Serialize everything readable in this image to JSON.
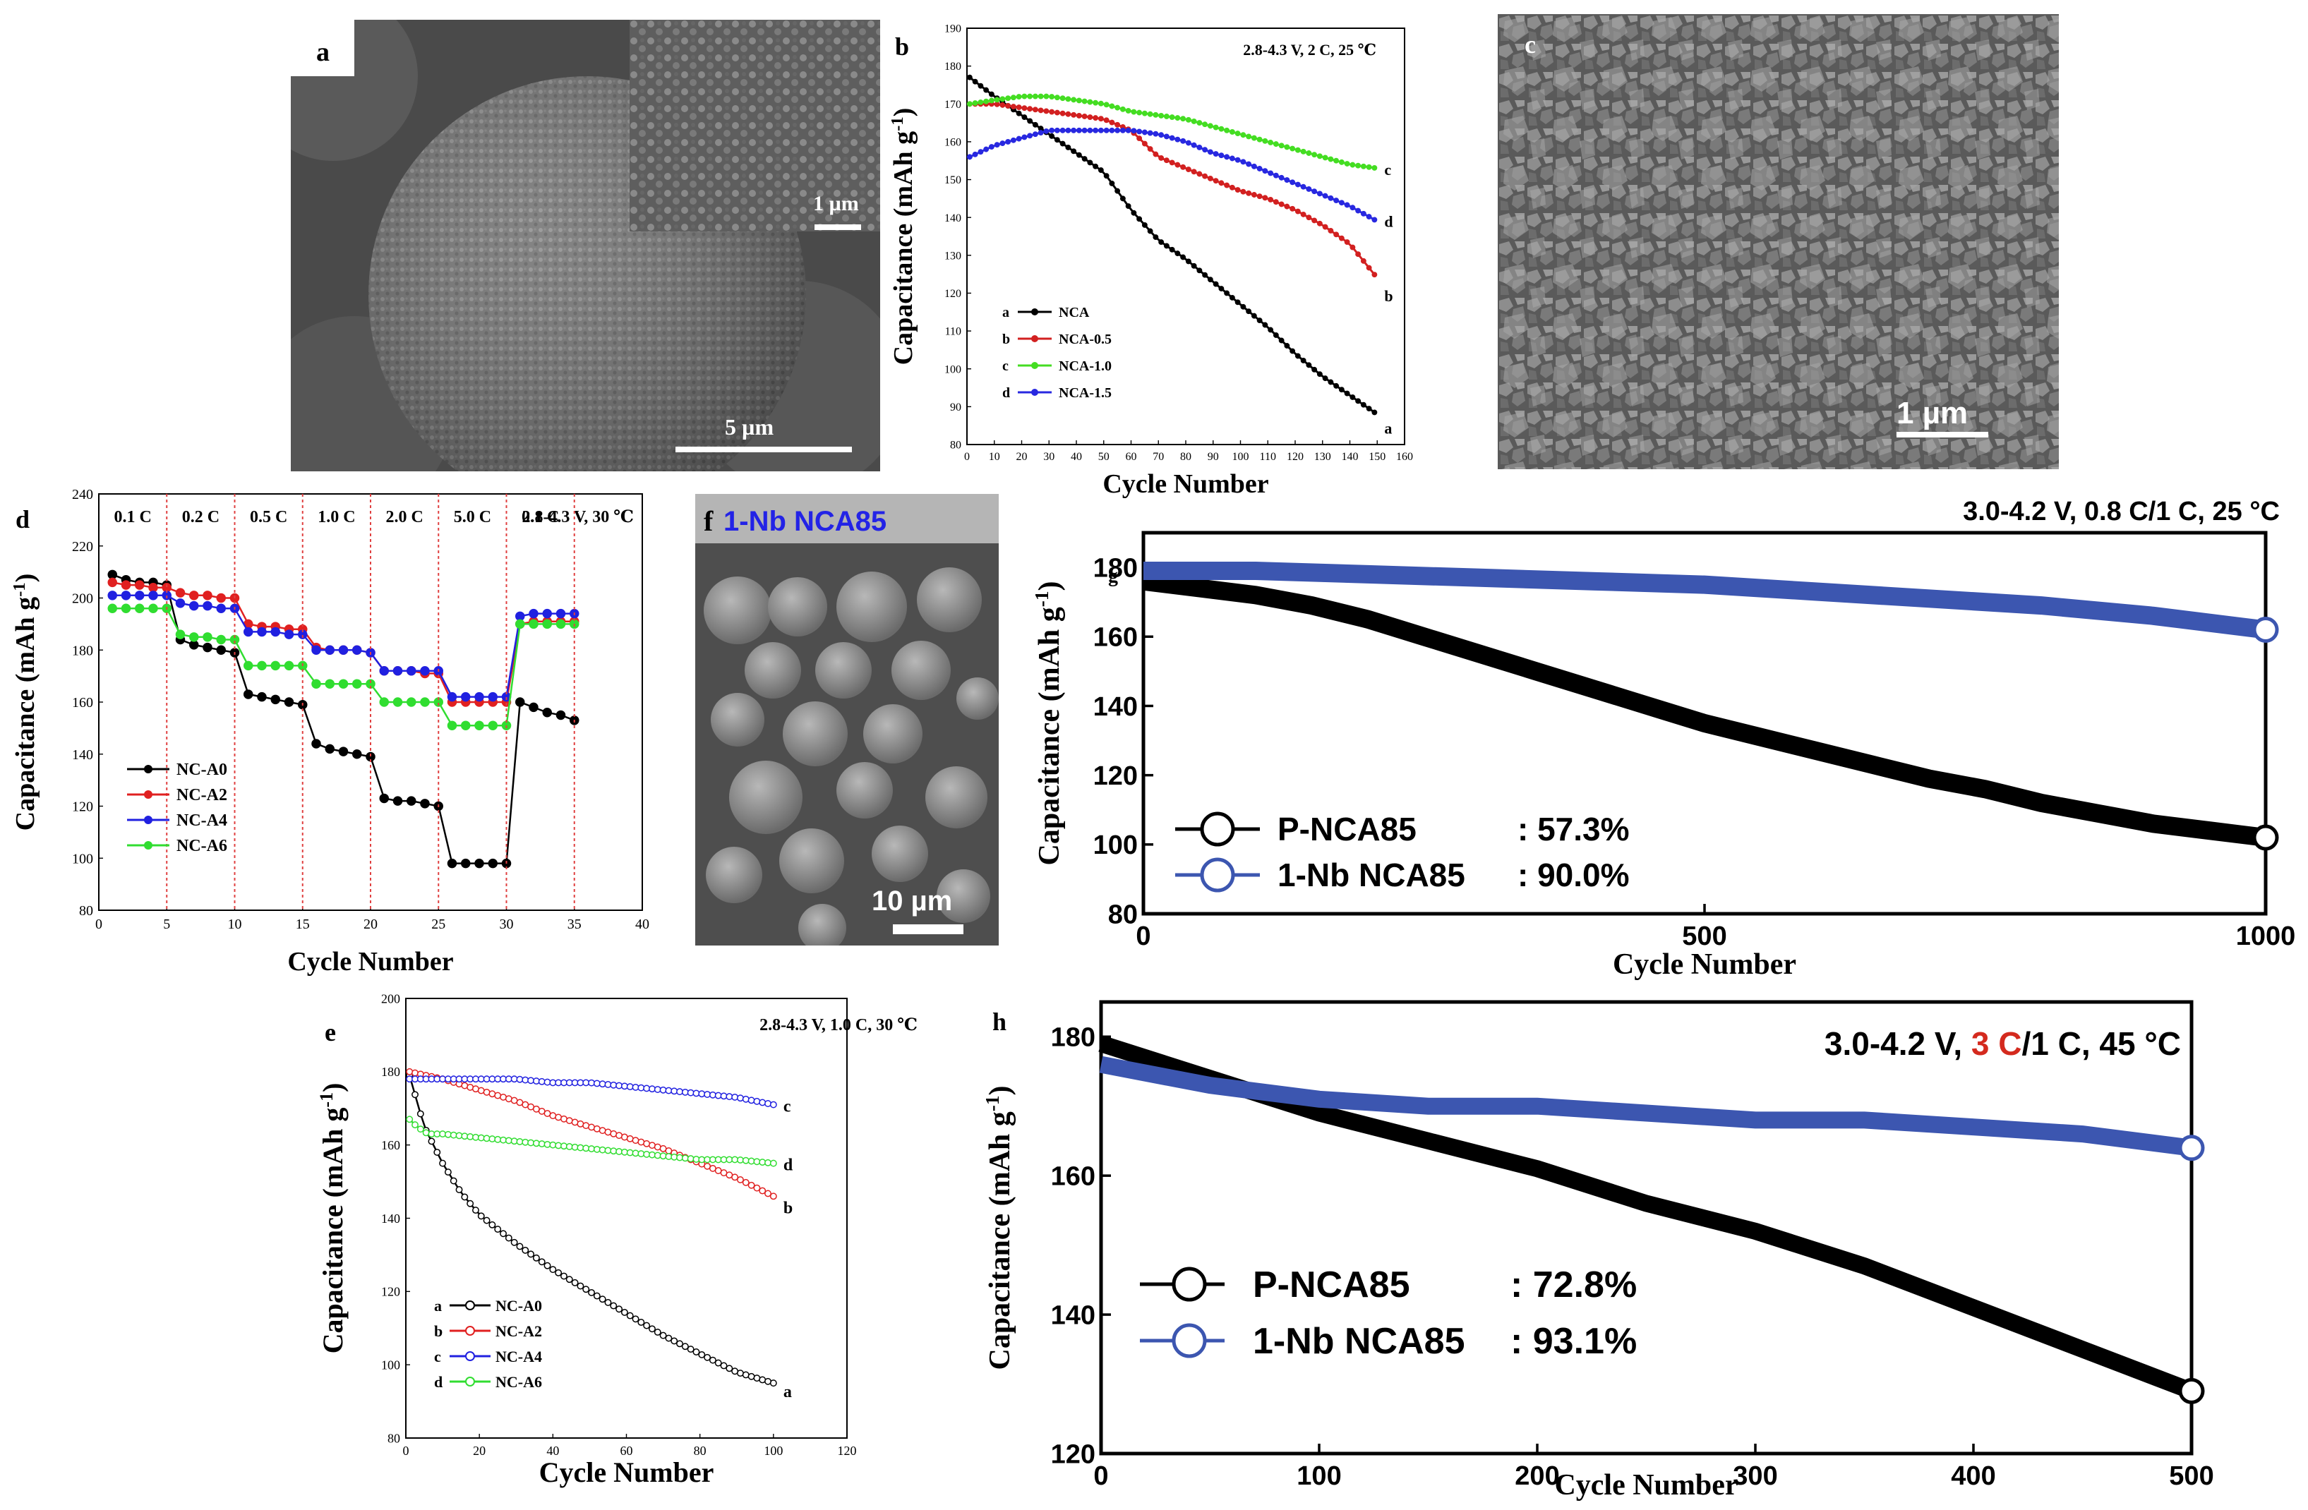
{
  "sem_labels": {
    "a": {
      "letter": "a",
      "scale_inset": "1 µm",
      "scale_main": "5 µm"
    },
    "c": {
      "letter": "c",
      "scale": "1 µm"
    },
    "f": {
      "letter": "f",
      "title": "1-Nb NCA85",
      "scale": "10 µm"
    }
  },
  "chart_data": [
    {
      "panel": "b",
      "type": "line",
      "title": "2.8-4.3 V, 2 C, 25 ℃",
      "xlabel": "Cycle Number",
      "ylabel": "Capacitance (mAh g-1)",
      "xlim": [
        0,
        160
      ],
      "ylim": [
        80,
        190
      ],
      "xticks": [
        0,
        10,
        20,
        30,
        40,
        50,
        60,
        70,
        80,
        90,
        100,
        110,
        120,
        130,
        140,
        150,
        160
      ],
      "yticks": [
        80,
        90,
        100,
        110,
        120,
        130,
        140,
        150,
        160,
        170,
        180,
        190
      ],
      "legend_position": "bottom-left",
      "series": [
        {
          "name": "NCA",
          "key": "a",
          "color": "#000000",
          "x": [
            1,
            10,
            20,
            30,
            40,
            50,
            60,
            70,
            80,
            90,
            100,
            110,
            120,
            130,
            140,
            150
          ],
          "y": [
            177,
            172,
            167,
            162,
            157,
            152,
            142,
            134,
            129,
            123,
            117,
            111,
            104,
            98,
            93,
            88
          ]
        },
        {
          "name": "NCA-0.5",
          "key": "b",
          "color": "#d22020",
          "x": [
            1,
            10,
            20,
            30,
            40,
            50,
            60,
            70,
            80,
            90,
            100,
            110,
            120,
            130,
            140,
            150
          ],
          "y": [
            170,
            170,
            169,
            168,
            167,
            166,
            163,
            156,
            153,
            150,
            147,
            145,
            142,
            138,
            133,
            124
          ]
        },
        {
          "name": "NCA-1.0",
          "key": "c",
          "color": "#44dd22",
          "x": [
            1,
            10,
            20,
            30,
            40,
            50,
            60,
            70,
            80,
            90,
            100,
            110,
            120,
            130,
            140,
            150
          ],
          "y": [
            170,
            171,
            172,
            172,
            171,
            170,
            168,
            167,
            166,
            164,
            162,
            160,
            158,
            156,
            154,
            153
          ]
        },
        {
          "name": "NCA-1.5",
          "key": "d",
          "color": "#2828e0",
          "x": [
            1,
            10,
            20,
            30,
            40,
            50,
            60,
            70,
            80,
            90,
            100,
            110,
            120,
            130,
            140,
            150
          ],
          "y": [
            156,
            159,
            161,
            163,
            163,
            163,
            163,
            162,
            160,
            157,
            155,
            152,
            149,
            146,
            143,
            139
          ]
        }
      ]
    },
    {
      "panel": "d",
      "type": "line",
      "title": "2.8-4.3 V, 30 ℃",
      "xlabel": "Cycle Number",
      "ylabel": "Capacitance (mAh g-1)",
      "xlim": [
        0,
        40
      ],
      "ylim": [
        80,
        240
      ],
      "xticks": [
        0,
        5,
        10,
        15,
        20,
        25,
        30,
        35,
        40
      ],
      "yticks": [
        80,
        100,
        120,
        140,
        160,
        180,
        200,
        220,
        240
      ],
      "rate_labels": [
        "0.1 C",
        "0.2 C",
        "0.5 C",
        "1.0 C",
        "2.0 C",
        "5.0 C",
        "0.1 C"
      ],
      "legend_position": "bottom-left",
      "series": [
        {
          "name": "NC-A0",
          "color": "#000000",
          "x": [
            1,
            2,
            3,
            4,
            5,
            6,
            7,
            8,
            9,
            10,
            11,
            12,
            13,
            14,
            15,
            16,
            17,
            18,
            19,
            20,
            21,
            22,
            23,
            24,
            25,
            26,
            27,
            28,
            29,
            30,
            31,
            32,
            33,
            34,
            35
          ],
          "y": [
            209,
            207,
            206,
            206,
            205,
            184,
            182,
            181,
            180,
            179,
            163,
            162,
            161,
            160,
            159,
            144,
            142,
            141,
            140,
            139,
            123,
            122,
            122,
            121,
            120,
            98,
            98,
            98,
            98,
            98,
            160,
            158,
            156,
            155,
            153
          ]
        },
        {
          "name": "NC-A2",
          "color": "#e02020",
          "x": [
            1,
            2,
            3,
            4,
            5,
            6,
            7,
            8,
            9,
            10,
            11,
            12,
            13,
            14,
            15,
            16,
            17,
            18,
            19,
            20,
            21,
            22,
            23,
            24,
            25,
            26,
            27,
            28,
            29,
            30,
            31,
            32,
            33,
            34,
            35
          ],
          "y": [
            206,
            205,
            205,
            204,
            204,
            202,
            201,
            201,
            200,
            200,
            190,
            189,
            189,
            188,
            188,
            181,
            180,
            180,
            180,
            179,
            172,
            172,
            172,
            171,
            171,
            160,
            160,
            160,
            160,
            160,
            190,
            191,
            191,
            191,
            191
          ]
        },
        {
          "name": "NC-A4",
          "color": "#2020e0",
          "x": [
            1,
            2,
            3,
            4,
            5,
            6,
            7,
            8,
            9,
            10,
            11,
            12,
            13,
            14,
            15,
            16,
            17,
            18,
            19,
            20,
            21,
            22,
            23,
            24,
            25,
            26,
            27,
            28,
            29,
            30,
            31,
            32,
            33,
            34,
            35
          ],
          "y": [
            201,
            201,
            201,
            201,
            201,
            198,
            197,
            197,
            196,
            196,
            187,
            187,
            187,
            186,
            186,
            180,
            180,
            180,
            180,
            179,
            172,
            172,
            172,
            172,
            172,
            162,
            162,
            162,
            162,
            162,
            193,
            194,
            194,
            194,
            194
          ]
        },
        {
          "name": "NC-A6",
          "color": "#30dd30",
          "x": [
            1,
            2,
            3,
            4,
            5,
            6,
            7,
            8,
            9,
            10,
            11,
            12,
            13,
            14,
            15,
            16,
            17,
            18,
            19,
            20,
            21,
            22,
            23,
            24,
            25,
            26,
            27,
            28,
            29,
            30,
            31,
            32,
            33,
            34,
            35
          ],
          "y": [
            196,
            196,
            196,
            196,
            196,
            186,
            185,
            185,
            184,
            184,
            174,
            174,
            174,
            174,
            174,
            167,
            167,
            167,
            167,
            167,
            160,
            160,
            160,
            160,
            160,
            151,
            151,
            151,
            151,
            151,
            190,
            190,
            190,
            190,
            190
          ]
        }
      ]
    },
    {
      "panel": "e",
      "type": "line",
      "title": "2.8-4.3 V, 1.0 C, 30 ℃",
      "xlabel": "Cycle Number",
      "ylabel": "Capacitance (mAh g-1)",
      "xlim": [
        0,
        120
      ],
      "ylim": [
        80,
        200
      ],
      "xticks": [
        0,
        20,
        40,
        60,
        80,
        100,
        120
      ],
      "yticks": [
        80,
        100,
        120,
        140,
        160,
        180,
        200
      ],
      "legend_position": "bottom-left",
      "series": [
        {
          "name": "NC-A0",
          "key": "a",
          "color": "#000000",
          "x": [
            1,
            5,
            10,
            15,
            20,
            25,
            30,
            40,
            50,
            60,
            70,
            80,
            90,
            100
          ],
          "y": [
            179,
            165,
            155,
            147,
            141,
            137,
            133,
            126,
            120,
            114,
            108,
            103,
            98,
            95
          ]
        },
        {
          "name": "NC-A2",
          "key": "b",
          "color": "#e02020",
          "x": [
            1,
            10,
            20,
            30,
            40,
            50,
            60,
            70,
            80,
            90,
            100
          ],
          "y": [
            180,
            178,
            175,
            172,
            168,
            165,
            162,
            159,
            155,
            151,
            146
          ]
        },
        {
          "name": "NC-A4",
          "key": "c",
          "color": "#2020e0",
          "x": [
            1,
            10,
            20,
            30,
            40,
            50,
            60,
            70,
            80,
            90,
            100
          ],
          "y": [
            178,
            178,
            178,
            178,
            177,
            177,
            176,
            175,
            174,
            173,
            171
          ]
        },
        {
          "name": "NC-A6",
          "key": "d",
          "color": "#30dd30",
          "x": [
            1,
            3,
            6,
            10,
            20,
            30,
            40,
            50,
            60,
            70,
            80,
            90,
            100
          ],
          "y": [
            167,
            165,
            163,
            163,
            162,
            161,
            160,
            159,
            158,
            157,
            156,
            156,
            155
          ]
        }
      ]
    },
    {
      "panel": "g",
      "type": "line",
      "title": "3.0-4.2 V, 0.8 C/1 C, 25 °C",
      "panel_tag": "g",
      "xlabel": "Cycle Number",
      "ylabel": "Capacitance (mAh g-1)",
      "xlim": [
        0,
        1000
      ],
      "ylim": [
        80,
        190
      ],
      "xticks": [
        0,
        500,
        1000
      ],
      "yticks": [
        80,
        100,
        120,
        140,
        160,
        180
      ],
      "legend_position": "bottom-left",
      "series": [
        {
          "name": "P-NCA85",
          "retention": ": 57.3%",
          "color": "#000000",
          "x": [
            0,
            50,
            100,
            150,
            200,
            250,
            300,
            350,
            400,
            450,
            500,
            550,
            600,
            650,
            700,
            750,
            800,
            850,
            900,
            950,
            1000
          ],
          "y": [
            176,
            174,
            172,
            169,
            165,
            160,
            155,
            150,
            145,
            140,
            135,
            131,
            127,
            123,
            119,
            116,
            112,
            109,
            106,
            104,
            102
          ]
        },
        {
          "name": "1-Nb NCA85",
          "retention": ": 90.0%",
          "color": "#3c56b0",
          "x": [
            0,
            100,
            200,
            300,
            400,
            500,
            600,
            700,
            800,
            900,
            1000
          ],
          "y": [
            179,
            179,
            178,
            177,
            176,
            175,
            173,
            171,
            169,
            166,
            162
          ]
        }
      ]
    },
    {
      "panel": "h",
      "type": "line",
      "title": "3.0-4.2 V, 3 C/1 C, 45 °C",
      "title_parts": [
        "3.0-4.2 V, ",
        "3 C",
        "/1 C, 45 °C"
      ],
      "xlabel": "Cycle Number",
      "ylabel": "Capacitance (mAh g-1)",
      "xlim": [
        0,
        500
      ],
      "ylim": [
        120,
        185
      ],
      "xticks": [
        0,
        100,
        200,
        300,
        400,
        500
      ],
      "yticks": [
        120,
        140,
        160,
        180
      ],
      "legend_position": "bottom-left",
      "series": [
        {
          "name": "P-NCA85",
          "retention": ": 72.8%",
          "color": "#000000",
          "x": [
            0,
            50,
            100,
            150,
            200,
            250,
            300,
            350,
            400,
            450,
            500
          ],
          "y": [
            179,
            174,
            169,
            165,
            161,
            156,
            152,
            147,
            141,
            135,
            129
          ]
        },
        {
          "name": "1-Nb NCA85",
          "retention": ": 93.1%",
          "color": "#3c56b0",
          "x": [
            0,
            50,
            100,
            150,
            200,
            250,
            300,
            350,
            400,
            450,
            500
          ],
          "y": [
            176,
            173,
            171,
            170,
            170,
            169,
            168,
            168,
            167,
            166,
            164
          ]
        }
      ]
    }
  ]
}
